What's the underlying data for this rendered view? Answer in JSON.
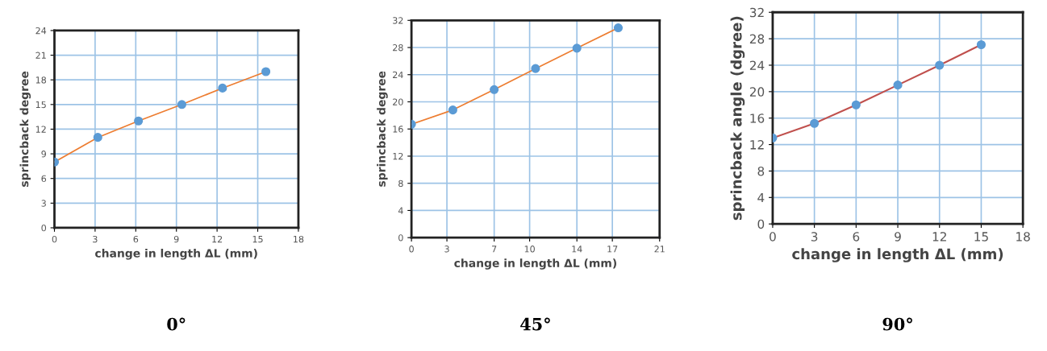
{
  "chart_data": [
    {
      "type": "line",
      "title": "0°",
      "xlabel": "change in length ΔL (mm)",
      "ylabel": "sprincback degree",
      "x": [
        0,
        3.2,
        6.2,
        9.4,
        12.4,
        15.6
      ],
      "series": [
        {
          "color": "#ed7d31",
          "values": [
            8,
            11,
            13,
            15,
            17,
            19
          ]
        }
      ],
      "marker": "circle",
      "xlim": [
        0,
        18
      ],
      "xticks": [
        0,
        3,
        6,
        9,
        12,
        15,
        18
      ],
      "ylim": [
        0,
        24
      ],
      "yticks": [
        0,
        3,
        6,
        9,
        12,
        15,
        18,
        21,
        24
      ],
      "grid": true
    },
    {
      "type": "line",
      "title": "45°",
      "xlabel": "change in length ΔL (mm)",
      "ylabel": "sprincback degree",
      "x": [
        0,
        3.5,
        7,
        10.5,
        14,
        17.5
      ],
      "series": [
        {
          "color": "#ed7d31",
          "values": [
            16.7,
            18.8,
            21.8,
            24.9,
            27.9,
            30.9
          ]
        }
      ],
      "marker": "circle",
      "xlim": [
        0,
        21
      ],
      "xticks": [
        0,
        3,
        7,
        10,
        14,
        17,
        21
      ],
      "ylim": [
        0,
        32
      ],
      "yticks": [
        0,
        4,
        8,
        12,
        16,
        20,
        24,
        28,
        32
      ],
      "grid": true
    },
    {
      "type": "line",
      "title": "90°",
      "xlabel": "change in length ΔL (mm)",
      "ylabel": "sprincback angle (dgree)",
      "x": [
        0,
        3,
        6,
        9,
        12,
        15
      ],
      "series": [
        {
          "color": "#c0504d",
          "values": [
            13,
            15.2,
            18,
            21,
            24,
            27.1
          ]
        }
      ],
      "marker": "circle",
      "xlim": [
        0,
        18
      ],
      "xticks": [
        0,
        3,
        6,
        9,
        12,
        15,
        18
      ],
      "ylim": [
        0,
        32
      ],
      "yticks": [
        0,
        4,
        8,
        12,
        16,
        20,
        24,
        28,
        32
      ],
      "grid": true
    }
  ]
}
